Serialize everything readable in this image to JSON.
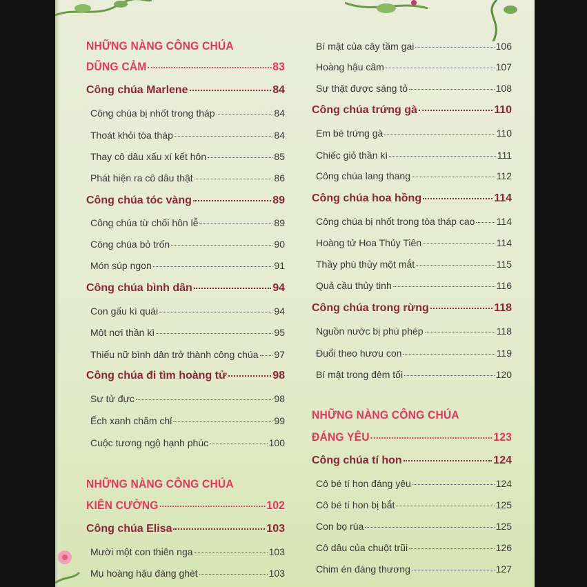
{
  "left": [
    {
      "type": "sec",
      "title": "NHỮNG NÀNG CÔNG CHÚA",
      "page": ""
    },
    {
      "type": "sec",
      "title": "DŨNG CẢM",
      "page": "83"
    },
    {
      "type": "chap",
      "title": "Công chúa Marlene",
      "page": "84"
    },
    {
      "type": "sub",
      "title": "Công chúa bị nhốt trong tháp",
      "page": "84"
    },
    {
      "type": "sub",
      "title": "Thoát khỏi tòa tháp",
      "page": "84"
    },
    {
      "type": "sub",
      "title": "Thay cô dâu xấu xí kết hôn",
      "page": "85"
    },
    {
      "type": "sub",
      "title": "Phát hiện ra cô dâu thật",
      "page": "86"
    },
    {
      "type": "chap",
      "title": "Công chúa tóc vàng",
      "page": "89"
    },
    {
      "type": "sub",
      "title": "Công chúa từ chối hôn lễ",
      "page": "89"
    },
    {
      "type": "sub",
      "title": "Công chúa bỏ trốn",
      "page": "90"
    },
    {
      "type": "sub",
      "title": "Món súp ngon",
      "page": "91"
    },
    {
      "type": "chap",
      "title": "Công chúa bình dân",
      "page": "94"
    },
    {
      "type": "sub",
      "title": "Con gấu kì quái",
      "page": "94"
    },
    {
      "type": "sub",
      "title": "Một nơi thần kì",
      "page": "95"
    },
    {
      "type": "sub",
      "title": "Thiếu nữ bình dân trở thành công chúa",
      "page": "97"
    },
    {
      "type": "chap",
      "title": "Công chúa đi tìm hoàng tử",
      "page": "98"
    },
    {
      "type": "sub",
      "title": "Sư tử đực",
      "page": "98"
    },
    {
      "type": "sub",
      "title": "Ếch xanh chăm chỉ",
      "page": "99"
    },
    {
      "type": "sub",
      "title": "Cuộc tương ngộ hạnh phúc",
      "page": "100"
    },
    {
      "type": "sec",
      "title": "NHỮNG NÀNG CÔNG CHÚA",
      "page": ""
    },
    {
      "type": "sec",
      "title": "KIÊN CƯỜNG",
      "page": "102"
    },
    {
      "type": "chap",
      "title": "Công chúa Elisa",
      "page": "103"
    },
    {
      "type": "sub",
      "title": "Mười một con thiên nga",
      "page": "103"
    },
    {
      "type": "sub",
      "title": "Mụ hoàng  hậu đáng ghét",
      "page": "103"
    }
  ],
  "right": [
    {
      "type": "sub",
      "title": "Bí mật của cây tầm gai",
      "page": "106"
    },
    {
      "type": "sub",
      "title": "Hoàng hậu câm",
      "page": "107"
    },
    {
      "type": "sub",
      "title": "Sự thật được sáng tỏ",
      "page": "108"
    },
    {
      "type": "chap",
      "title": "Công chúa trứng gà",
      "page": "110"
    },
    {
      "type": "sub",
      "title": "Em bé trứng gà",
      "page": "110"
    },
    {
      "type": "sub",
      "title": "Chiếc giỏ thần kì",
      "page": "111"
    },
    {
      "type": "sub",
      "title": "Công chúa lang thang",
      "page": "112"
    },
    {
      "type": "chap",
      "title": "Công chúa hoa hồng",
      "page": "114"
    },
    {
      "type": "sub",
      "title": "Công chúa bị nhốt trong tòa tháp cao",
      "page": "114"
    },
    {
      "type": "sub",
      "title": "Hoàng tử Hoa Thủy Tiên",
      "page": "114"
    },
    {
      "type": "sub",
      "title": "Thầy phù thủy một mắt",
      "page": "115"
    },
    {
      "type": "sub",
      "title": "Quả cầu thủy tinh",
      "page": "116"
    },
    {
      "type": "chap",
      "title": "Công chúa trong rừng",
      "page": "118"
    },
    {
      "type": "sub",
      "title": "Nguồn nước bị phù phép",
      "page": "118"
    },
    {
      "type": "sub",
      "title": "Đuổi theo hươu con",
      "page": "119"
    },
    {
      "type": "sub",
      "title": "Bí mật trong đêm tối",
      "page": "120"
    },
    {
      "type": "sec",
      "title": "NHỮNG NÀNG CÔNG CHÚA",
      "page": ""
    },
    {
      "type": "sec",
      "title": "ĐÁNG YÊU",
      "page": "123"
    },
    {
      "type": "chap",
      "title": "Công chúa tí hon",
      "page": "124"
    },
    {
      "type": "sub",
      "title": "Cô bé tí hon đáng yêu",
      "page": "124"
    },
    {
      "type": "sub",
      "title": "Cô bé tí hon bị bắt",
      "page": "125"
    },
    {
      "type": "sub",
      "title": "Con bọ rùa",
      "page": "125"
    },
    {
      "type": "sub",
      "title": "Cô dâu của chuột trũi",
      "page": "126"
    },
    {
      "type": "sub",
      "title": "Chim én đáng thương",
      "page": "127"
    }
  ],
  "colors": {
    "section": "#e2375f",
    "chapter": "#8a2737",
    "subchapter": "#3b3636",
    "page": "#e6ecd2"
  },
  "decorations": [
    "vine-top-left",
    "vine-top-right",
    "pink-flower-bottom-left"
  ]
}
